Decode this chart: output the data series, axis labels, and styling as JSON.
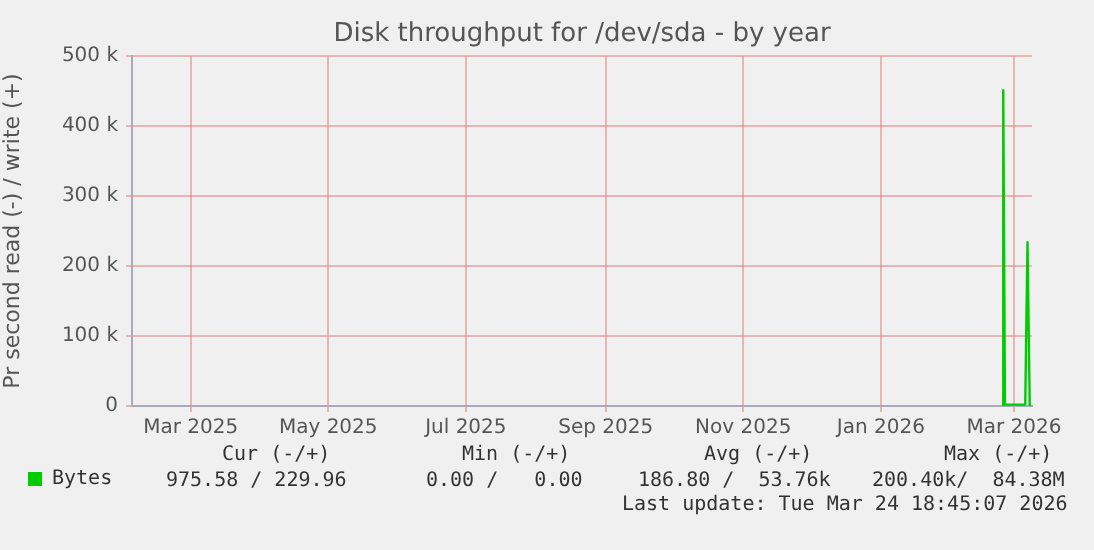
{
  "chart_data": {
    "type": "line",
    "title": "Disk throughput for /dev/sda - by year",
    "ylabel": "Pr second read (-) / write (+)",
    "x": [
      "2026-03-11T00:00",
      "2026-03-11T06:00",
      "2026-03-12",
      "2026-03-21",
      "2026-03-22",
      "2026-03-23"
    ],
    "series": [
      {
        "name": "Bytes",
        "color": "#00cc00",
        "values": [
          0,
          451000,
          2000,
          2000,
          234000,
          0
        ]
      }
    ],
    "xlim": [
      "2025-02-18",
      "2026-03-24"
    ],
    "xticks": [
      {
        "value": "2025-03-16",
        "label": "Mar 2025"
      },
      {
        "value": "2025-05-16",
        "label": "May 2025"
      },
      {
        "value": "2025-07-16",
        "label": "Jul 2025"
      },
      {
        "value": "2025-09-16",
        "label": "Sep 2025"
      },
      {
        "value": "2025-11-16",
        "label": "Nov 2025"
      },
      {
        "value": "2026-01-16",
        "label": "Jan 2026"
      },
      {
        "value": "2026-03-16",
        "label": "Mar 2026"
      }
    ],
    "ylim": [
      0,
      500000
    ],
    "yticks": [
      0,
      {
        "value": 100000,
        "label": "100 k"
      },
      {
        "value": 200000,
        "label": "200 k"
      },
      {
        "value": 300000,
        "label": "300 k"
      },
      {
        "value": 400000,
        "label": "400 k"
      },
      {
        "value": 500000,
        "label": "500 k"
      }
    ],
    "grid": true,
    "legend": "bottom left",
    "marker": "none",
    "line_style": "solid",
    "annotations": [
      "Cur (-/+)",
      "Min (-/+)",
      "Avg (-/+)",
      "Max (-/+)",
      "975.58 / 229.96",
      "0.00 /   0.00",
      "186.80 /  53.76k",
      "200.40k/  84.38M",
      "Last update: Tue Mar 24 18:45:07 2026"
    ]
  }
}
